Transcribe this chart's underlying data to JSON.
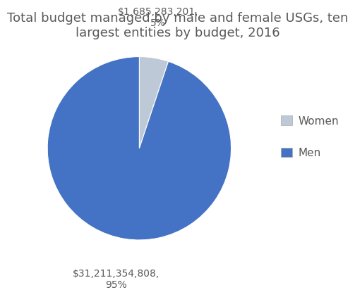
{
  "title": "Total budget managed by male and female USGs, ten\nlargest entities by budget, 2016",
  "labels": [
    "Women",
    "Men"
  ],
  "values": [
    1685283201,
    31211354808
  ],
  "colors": [
    "#bdc9d7",
    "#4472c4"
  ],
  "women_label": "$1,685,283,201,\n5%",
  "men_label": "$31,211,354,808,\n95%",
  "legend_labels": [
    "Women",
    "Men"
  ],
  "title_fontsize": 13,
  "label_fontsize": 10,
  "startangle": 90,
  "background_color": "#ffffff"
}
